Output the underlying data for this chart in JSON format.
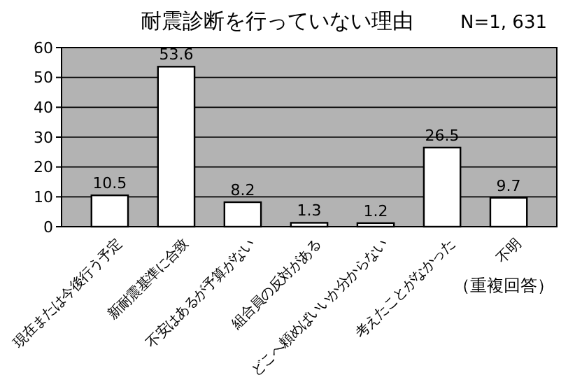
{
  "chart_data": {
    "type": "bar",
    "title": "耐震診断を行っていない理由",
    "subtitle": "N=1, 631",
    "categories": [
      "現在または今後行う予定",
      "新耐震基準に合致",
      "不安はあるが予算がない",
      "組合員の反対がある",
      "どこへ頼めばいいか分からない",
      "考えたことがなかった",
      "不明"
    ],
    "values": [
      10.5,
      53.6,
      8.2,
      1.3,
      1.2,
      26.5,
      9.7
    ],
    "color": "#ffffff",
    "ylim": [
      0,
      60
    ],
    "yticks": [
      0,
      10,
      20,
      30,
      40,
      50,
      60
    ],
    "grid": "y",
    "data_labels": true,
    "annotations": [
      "（重複回答）"
    ]
  }
}
